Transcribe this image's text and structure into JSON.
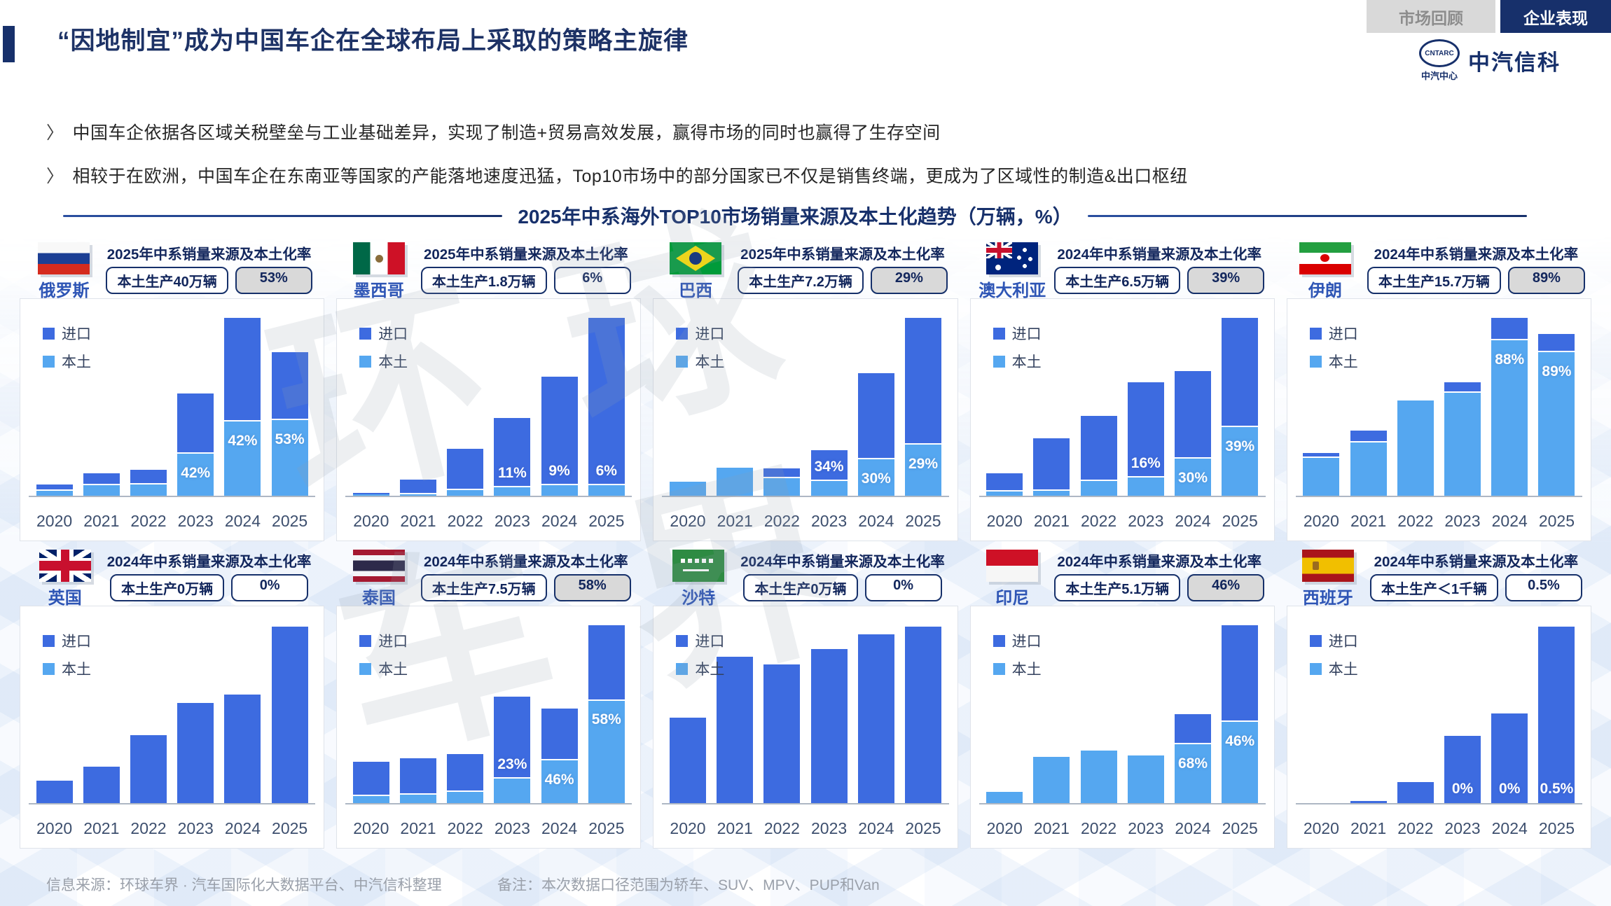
{
  "tabs": [
    {
      "label": "市场回顾",
      "active": false
    },
    {
      "label": "企业表现",
      "active": true
    }
  ],
  "logo": {
    "badge": "CNTARC",
    "org": "中汽中心",
    "brand": "中汽信科"
  },
  "title": "“因地制宜”成为中国车企在全球布局上采取的策略主旋律",
  "bullet_marker": "〉",
  "bullets": [
    "中国车企依据各区域关税壁垒与工业基础差异，实现了制造+贸易高效发展，赢得市场的同时也赢得了生存空间",
    "相较于在欧洲，中国车企在东南亚等国家的产能落地速度迅猛，Top10市场中的部分国家已不仅是销售终端，更成为了区域性的制造&出口枢纽"
  ],
  "section_title": "2025年中系海外TOP10市场销量来源及本土化趋势（万辆，%）",
  "legend": {
    "import": "进口",
    "local": "本土"
  },
  "colors": {
    "import": "#3D6BE0",
    "local": "#55A7F0",
    "navy": "#17306B",
    "tab_inactive_bg": "#D9D9D9",
    "rate_box_bg": "#D9D9D9"
  },
  "watermark": "环球\n车界",
  "years": [
    "2020",
    "2021",
    "2022",
    "2023",
    "2024",
    "2025"
  ],
  "footer": {
    "source": "信息来源：环球车界 · 汽车国际化大数据平台、中汽信科整理",
    "note": "备注：本次数据口径范围为轿车、SUV、MPV、PUP和Van"
  },
  "chart_data": [
    {
      "type": "bar",
      "country": "俄罗斯",
      "flag": "ru",
      "header_title": "2025年中系销量来源及本土化率",
      "volume_box": "本土生产40万辆",
      "rate_box": "53%",
      "rate_box_filled": true,
      "unit": "万辆",
      "stacked": true,
      "local": [
        2.5,
        5.5,
        6,
        22,
        39,
        40
      ],
      "import": [
        2.5,
        5.5,
        7,
        31,
        54,
        35
      ],
      "labels": [
        "",
        "",
        "",
        "42%",
        "42%",
        "53%"
      ]
    },
    {
      "type": "bar",
      "country": "墨西哥",
      "flag": "mx",
      "header_title": "2025年中系销量来源及本土化率",
      "volume_box": "本土生产1.8万辆",
      "rate_box": "6%",
      "rate_box_filled": false,
      "unit": "万辆",
      "stacked": true,
      "local": [
        0.2,
        0.3,
        1,
        1.4,
        1.8,
        1.8
      ],
      "import": [
        0.3,
        2.2,
        6.7,
        11.6,
        18.2,
        28.2
      ],
      "labels": [
        "",
        "",
        "",
        "11%",
        "9%",
        "6%"
      ]
    },
    {
      "type": "bar",
      "country": "巴西",
      "flag": "br",
      "header_title": "2025年中系销量来源及本土化率",
      "volume_box": "本土生产7.2万辆",
      "rate_box": "29%",
      "rate_box_filled": true,
      "unit": "万辆",
      "stacked": true,
      "local": [
        2,
        3.9,
        2.5,
        2.1,
        5.1,
        7.2
      ],
      "import": [
        0,
        0,
        1.1,
        4.1,
        11.9,
        17.6
      ],
      "labels": [
        "",
        "",
        "",
        "34%",
        "30%",
        "29%"
      ]
    },
    {
      "type": "bar",
      "country": "澳大利亚",
      "flag": "au",
      "header_title": "2024年中系销量来源及本土化率",
      "volume_box": "本土生产6.5万辆",
      "rate_box": "39%",
      "rate_box_filled": true,
      "unit": "万辆",
      "stacked": true,
      "local": [
        0.4,
        0.5,
        1.4,
        1.7,
        3.5,
        6.5
      ],
      "import": [
        1.6,
        4.8,
        6,
        8.9,
        8.2,
        10.2
      ],
      "labels": [
        "",
        "",
        "",
        "16%",
        "30%",
        "39%"
      ]
    },
    {
      "type": "bar",
      "country": "伊朗",
      "flag": "ir",
      "header_title": "2024年中系销量来源及本土化率",
      "volume_box": "本土生产15.7万辆",
      "rate_box": "89%",
      "rate_box_filled": true,
      "unit": "万辆",
      "stacked": true,
      "local": [
        3.8,
        5.4,
        9.6,
        10.4,
        15.7,
        14.5
      ],
      "import": [
        0.4,
        1,
        0,
        0.9,
        2.1,
        1.7
      ],
      "labels": [
        "",
        "",
        "",
        "",
        "88%",
        "89%"
      ]
    },
    {
      "type": "bar",
      "country": "英国",
      "flag": "gb",
      "header_title": "2024年中系销量来源及本土化率",
      "volume_box": "本土生产0万辆",
      "rate_box": "0%",
      "rate_box_filled": false,
      "unit": "万辆",
      "stacked": true,
      "local": [
        0,
        0,
        0,
        0,
        0,
        0
      ],
      "import": [
        1.9,
        3.1,
        5.8,
        8.5,
        9.2,
        15
      ],
      "labels": [
        "",
        "",
        "",
        "",
        "",
        ""
      ]
    },
    {
      "type": "bar",
      "country": "泰国",
      "flag": "th",
      "header_title": "2024年中系销量来源及本土化率",
      "volume_box": "本土生产7.5万辆",
      "rate_box": "58%",
      "rate_box_filled": true,
      "unit": "万辆",
      "stacked": true,
      "local": [
        0.5,
        0.6,
        0.8,
        1.8,
        3.1,
        7.5
      ],
      "import": [
        2.4,
        2.6,
        2.7,
        5.9,
        3.7,
        5.4
      ],
      "labels": [
        "",
        "",
        "",
        "23%",
        "46%",
        "58%"
      ]
    },
    {
      "type": "bar",
      "country": "沙特",
      "flag": "sa",
      "header_title": "2024年中系销量来源及本土化率",
      "volume_box": "本土生产0万辆",
      "rate_box": "0%",
      "rate_box_filled": false,
      "unit": "万辆",
      "stacked": true,
      "local": [
        0,
        0,
        0,
        0,
        0,
        0
      ],
      "import": [
        3.4,
        5.8,
        5.5,
        6.1,
        6.7,
        7
      ],
      "labels": [
        "",
        "",
        "",
        "",
        "",
        ""
      ]
    },
    {
      "type": "bar",
      "country": "印尼",
      "flag": "id",
      "header_title": "2024年中系销量来源及本土化率",
      "volume_box": "本土生产5.1万辆",
      "rate_box": "46%",
      "rate_box_filled": true,
      "unit": "万辆",
      "stacked": true,
      "local": [
        0.7,
        2.9,
        3.3,
        3,
        3.7,
        5.1
      ],
      "import": [
        0,
        0,
        0,
        0,
        1.8,
        6
      ],
      "labels": [
        "",
        "",
        "",
        "",
        "68%",
        "46%"
      ]
    },
    {
      "type": "bar",
      "country": "西班牙",
      "flag": "es",
      "header_title": "2024年中系销量来源及本土化率",
      "volume_box": "本土生产＜1千辆",
      "rate_box": "0.5%",
      "rate_box_filled": false,
      "unit": "万辆",
      "stacked": true,
      "local": [
        0,
        0,
        0,
        0,
        0,
        0
      ],
      "import": [
        0,
        0.2,
        1.8,
        5.8,
        7.7,
        15.2
      ],
      "labels": [
        "",
        "",
        "",
        "0%",
        "0%",
        "0.5%"
      ]
    }
  ]
}
